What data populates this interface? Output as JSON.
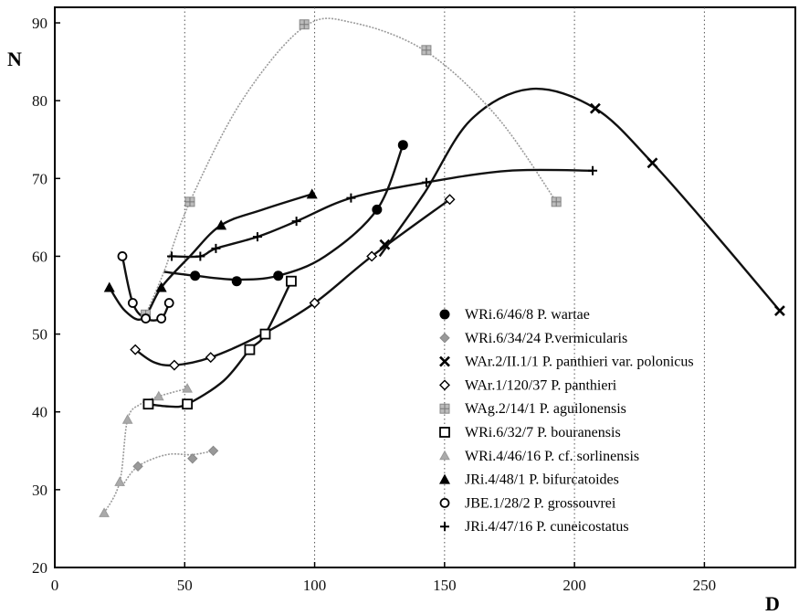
{
  "chart_data": {
    "type": "scatter",
    "title": "",
    "xlabel": "D",
    "ylabel": "N",
    "xlim": [
      0,
      285
    ],
    "ylim": [
      20,
      92
    ],
    "xticks": [
      0,
      50,
      100,
      150,
      200,
      250
    ],
    "yticks": [
      20,
      30,
      40,
      50,
      60,
      70,
      80,
      90
    ],
    "grid": "vertical dotted",
    "legend_position": "bottom-right",
    "series": [
      {
        "name": "WRi.6/46/8 P. wartae",
        "marker": "filled-circle",
        "color": "#000000",
        "points": [
          [
            54,
            57.5
          ],
          [
            70,
            56.8
          ],
          [
            86,
            57.5
          ],
          [
            124,
            66
          ],
          [
            134,
            74.3
          ]
        ],
        "curve": [
          [
            42,
            58
          ],
          [
            54,
            57.5
          ],
          [
            70,
            57
          ],
          [
            86,
            57.5
          ],
          [
            104,
            60
          ],
          [
            124,
            66
          ],
          [
            134,
            74.3
          ]
        ]
      },
      {
        "name": "WRi.6/34/24 P.vermicularis",
        "marker": "grey-diamond",
        "color": "#888888",
        "points": [
          [
            32,
            33
          ],
          [
            53,
            34
          ],
          [
            61,
            35
          ]
        ],
        "curve": [
          [
            26,
            30.5
          ],
          [
            32,
            33
          ],
          [
            43,
            34.5
          ],
          [
            53,
            34.5
          ],
          [
            61,
            35
          ]
        ]
      },
      {
        "name": "WAr.2/II.1/1 P. panthieri var. polonicus",
        "marker": "x",
        "color": "#000000",
        "points": [
          [
            127,
            61.5
          ],
          [
            208,
            79
          ],
          [
            230,
            72
          ],
          [
            279,
            53
          ]
        ],
        "curve": [
          [
            125,
            60
          ],
          [
            142,
            68
          ],
          [
            160,
            77.5
          ],
          [
            183,
            81.5
          ],
          [
            208,
            79
          ],
          [
            230,
            72
          ],
          [
            255,
            62.5
          ],
          [
            279,
            53
          ]
        ]
      },
      {
        "name": "WAr.1/120/37 P. panthieri",
        "marker": "open-diamond",
        "color": "#000000",
        "points": [
          [
            31,
            48
          ],
          [
            46,
            46
          ],
          [
            60,
            47
          ],
          [
            100,
            54
          ],
          [
            122,
            60
          ],
          [
            152,
            67.3
          ]
        ],
        "curve": [
          [
            31,
            48
          ],
          [
            38,
            46.4
          ],
          [
            46,
            46
          ],
          [
            60,
            47
          ],
          [
            80,
            50
          ],
          [
            100,
            54
          ],
          [
            122,
            60
          ],
          [
            152,
            67.3
          ]
        ]
      },
      {
        "name": "WAg.2/14/1 P. aguilonensis",
        "marker": "checker-square",
        "color": "#999999",
        "points": [
          [
            35,
            52.5
          ],
          [
            52,
            67
          ],
          [
            96,
            89.8
          ],
          [
            143,
            86.5
          ],
          [
            193,
            67
          ]
        ],
        "curve": [
          [
            35,
            52.5
          ],
          [
            42,
            58
          ],
          [
            52,
            67
          ],
          [
            72,
            80
          ],
          [
            96,
            89.5
          ],
          [
            115,
            90
          ],
          [
            143,
            86.3
          ],
          [
            170,
            78
          ],
          [
            193,
            67
          ]
        ]
      },
      {
        "name": "WRi.6/32/7 P. bouranensis",
        "marker": "open-square",
        "color": "#000000",
        "points": [
          [
            36,
            41
          ],
          [
            51,
            41
          ],
          [
            75,
            48
          ],
          [
            81,
            50
          ],
          [
            91,
            56.8
          ]
        ],
        "curve": [
          [
            36,
            41
          ],
          [
            44,
            40.7
          ],
          [
            51,
            41
          ],
          [
            65,
            44
          ],
          [
            75,
            48
          ],
          [
            81,
            50
          ],
          [
            91,
            56.8
          ]
        ]
      },
      {
        "name": "WRi.4/46/16 P. cf. sorlinensis",
        "marker": "grey-triangle",
        "color": "#999999",
        "points": [
          [
            19,
            27
          ],
          [
            25,
            31
          ],
          [
            28,
            39
          ],
          [
            40,
            42
          ],
          [
            51,
            43
          ]
        ],
        "curve": [
          [
            19,
            27
          ],
          [
            25,
            31
          ],
          [
            28,
            39
          ],
          [
            33,
            41
          ],
          [
            40,
            42
          ],
          [
            51,
            43
          ]
        ]
      },
      {
        "name": "JRi.4/48/1 P. bifurcatoides",
        "marker": "filled-triangle",
        "color": "#000000",
        "points": [
          [
            21,
            56
          ],
          [
            41,
            56
          ],
          [
            64,
            64
          ],
          [
            99,
            68
          ]
        ],
        "curve": [
          [
            21,
            56
          ],
          [
            27,
            53
          ],
          [
            34,
            52
          ],
          [
            41,
            56
          ],
          [
            52,
            60
          ],
          [
            64,
            64
          ],
          [
            80,
            66
          ],
          [
            99,
            68
          ]
        ]
      },
      {
        "name": "JBE.1/28/2 P. grossouvrei",
        "marker": "open-circle",
        "color": "#000000",
        "points": [
          [
            26,
            60
          ],
          [
            30,
            54
          ],
          [
            35,
            52
          ],
          [
            41,
            52
          ],
          [
            44,
            54
          ]
        ],
        "curve": [
          [
            26,
            60
          ],
          [
            30,
            54
          ],
          [
            35,
            52
          ],
          [
            41,
            52
          ],
          [
            44,
            54
          ]
        ]
      },
      {
        "name": "JRi.4/47/16 P. cuneicostatus",
        "marker": "plus",
        "color": "#000000",
        "points": [
          [
            45,
            60
          ],
          [
            56,
            60
          ],
          [
            62,
            61
          ],
          [
            78,
            62.5
          ],
          [
            93,
            64.5
          ],
          [
            114,
            67.5
          ],
          [
            143,
            69.5
          ],
          [
            207,
            71
          ]
        ],
        "curve": [
          [
            45,
            60
          ],
          [
            56,
            60
          ],
          [
            62,
            61
          ],
          [
            78,
            62.5
          ],
          [
            93,
            64.5
          ],
          [
            114,
            67.5
          ],
          [
            143,
            69.5
          ],
          [
            175,
            71
          ],
          [
            207,
            71
          ]
        ]
      }
    ]
  }
}
